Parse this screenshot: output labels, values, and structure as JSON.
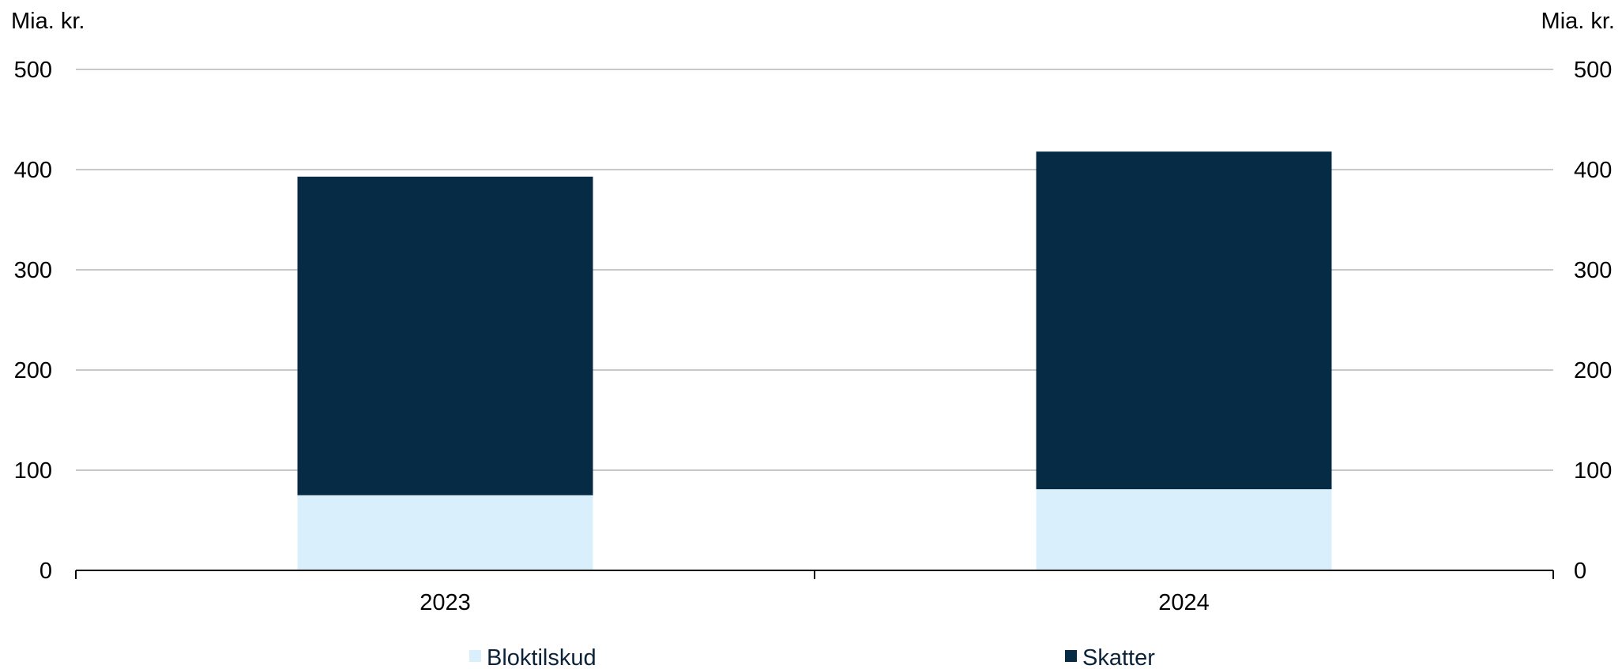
{
  "chart_data": {
    "type": "bar",
    "stacked": true,
    "categories": [
      "2023",
      "2024"
    ],
    "series": [
      {
        "name": "Bloktilskud",
        "values": [
          75,
          81
        ],
        "color": "#d9effc"
      },
      {
        "name": "Skatter",
        "values": [
          318,
          337
        ],
        "color": "#062b45"
      }
    ],
    "y_unit_left": "Mia. kr.",
    "y_unit_right": "Mia. kr.",
    "ylim": [
      0,
      500
    ],
    "yticks": [
      0,
      100,
      200,
      300,
      400,
      500
    ],
    "grid": true,
    "legend_position": "bottom"
  }
}
